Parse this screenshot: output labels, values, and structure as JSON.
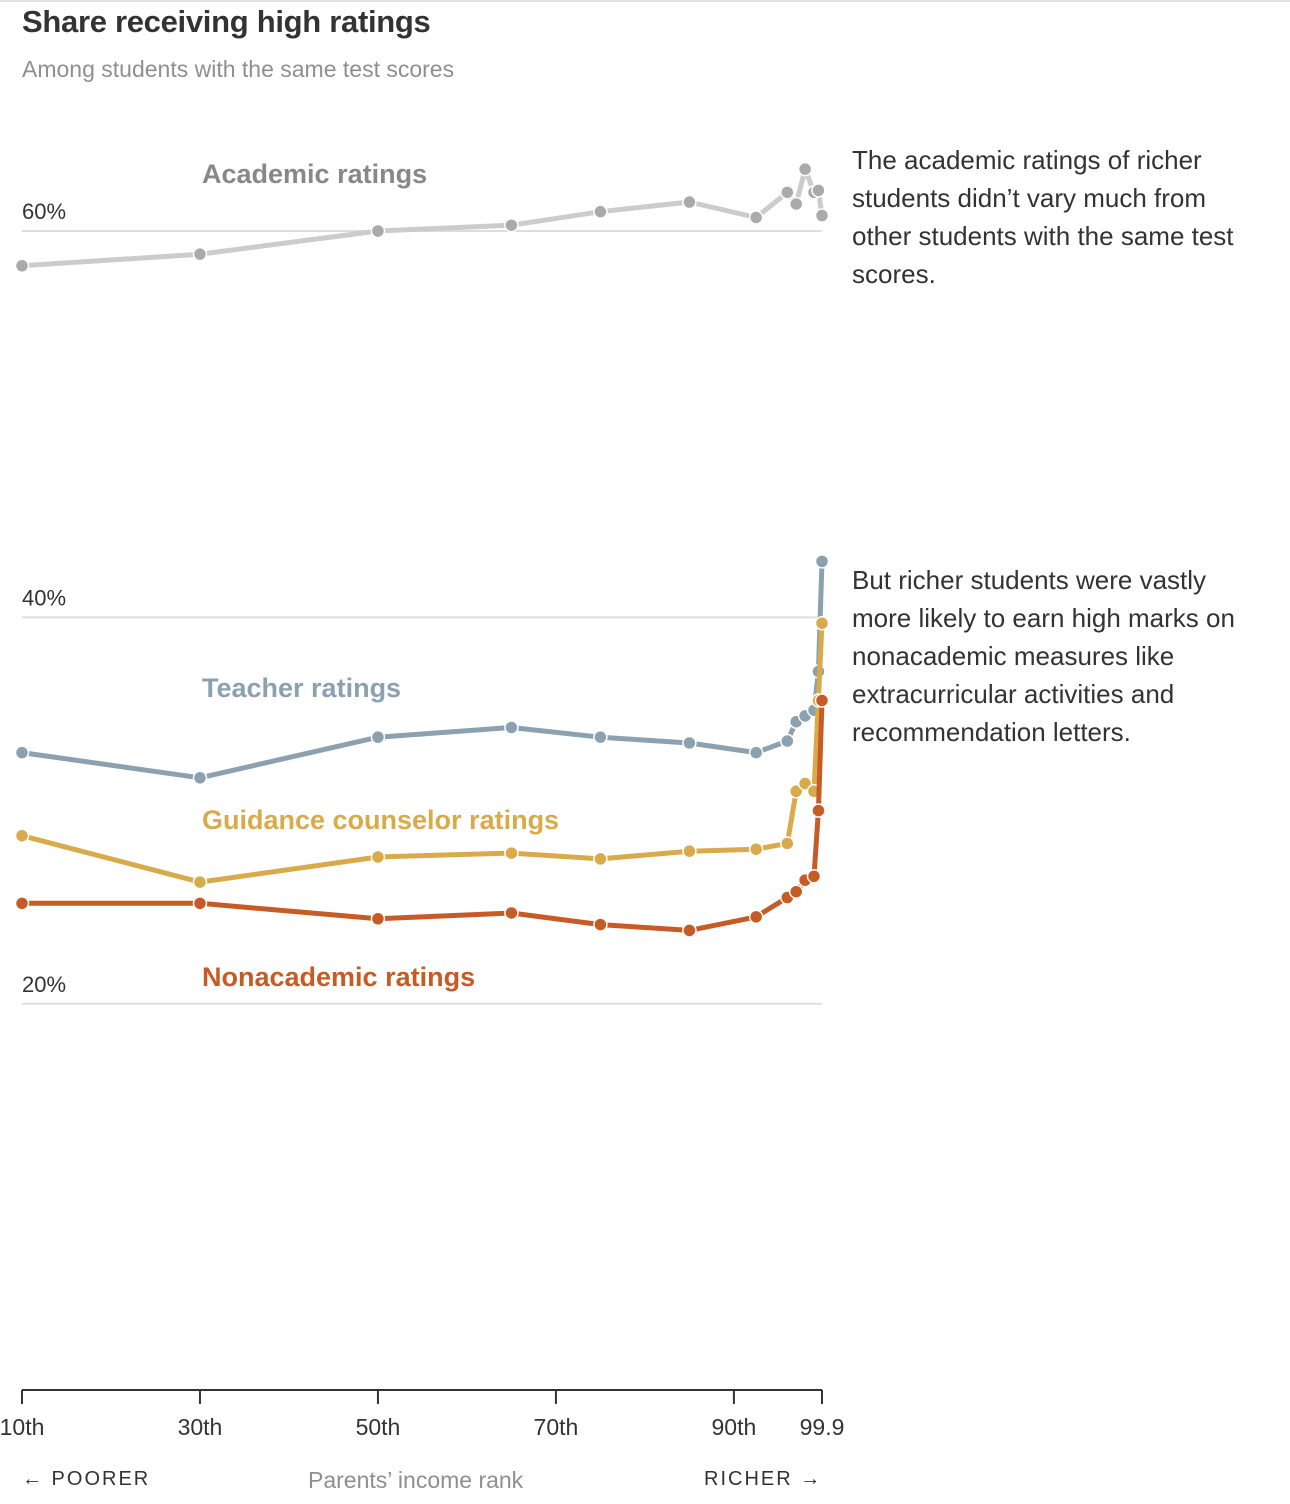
{
  "header": {
    "title": "Share receiving high ratings",
    "subtitle": "Among students with the same test scores"
  },
  "annotations": [
    "The academic ratings of richer students didn’t vary much from other students with the same test scores.",
    "But richer students were vastly more likely to earn high marks on nonacademic measures like extracurricular activities and recommendation letters."
  ],
  "x_axis": {
    "title": "Parents’ income rank",
    "left_label": "← POORER",
    "right_label": "RICHER →"
  },
  "chart_data": {
    "type": "line",
    "title": "Share receiving high ratings",
    "subtitle": "Among students with the same test scores",
    "xlabel": "Parents’ income rank",
    "ylabel": "",
    "xlim": [
      10,
      99.9
    ],
    "ylim": [
      -0.2,
      0.6
    ],
    "x_ticks": [
      {
        "value": 10,
        "label": "10th"
      },
      {
        "value": 30,
        "label": "30th"
      },
      {
        "value": 50,
        "label": "50th"
      },
      {
        "value": 70,
        "label": "70th"
      },
      {
        "value": 90,
        "label": "90th"
      },
      {
        "value": 99.9,
        "label": "99.9"
      }
    ],
    "y_ticks": [
      {
        "value": 0.6,
        "label": "60%"
      },
      {
        "value": 0.4,
        "label": "40%"
      },
      {
        "value": 0.2,
        "label": "20%"
      }
    ],
    "grid": true,
    "legend": "inline labels",
    "series": [
      {
        "name": "Academic ratings",
        "color": "#cccccc",
        "marker_color": "#aaaaaa",
        "label_color": "#888888",
        "points": [
          [
            10,
            0.582
          ],
          [
            30,
            0.588
          ],
          [
            50,
            0.6
          ],
          [
            65,
            0.603
          ],
          [
            75,
            0.61
          ],
          [
            85,
            0.615
          ],
          [
            92.5,
            0.607
          ],
          [
            96,
            0.62
          ],
          [
            97,
            0.614
          ],
          [
            98,
            0.632
          ],
          [
            99,
            0.62
          ],
          [
            99.5,
            0.621
          ],
          [
            99.9,
            0.608
          ]
        ]
      },
      {
        "name": "Teacher ratings",
        "color": "#8ba1b0",
        "marker_color": "#8ba1b0",
        "label_color": "#8ba1b0",
        "points": [
          [
            10,
            0.33
          ],
          [
            30,
            0.317
          ],
          [
            50,
            0.338
          ],
          [
            65,
            0.343
          ],
          [
            75,
            0.338
          ],
          [
            85,
            0.335
          ],
          [
            92.5,
            0.33
          ],
          [
            96,
            0.336
          ],
          [
            97,
            0.346
          ],
          [
            98,
            0.349
          ],
          [
            99,
            0.352
          ],
          [
            99.5,
            0.372
          ],
          [
            99.9,
            0.429
          ]
        ]
      },
      {
        "name": "Guidance counselor ratings",
        "color": "#d9aa4a",
        "marker_color": "#d9aa4a",
        "label_color": "#d9aa4a",
        "points": [
          [
            10,
            0.287
          ],
          [
            30,
            0.263
          ],
          [
            50,
            0.276
          ],
          [
            65,
            0.278
          ],
          [
            75,
            0.275
          ],
          [
            85,
            0.279
          ],
          [
            92.5,
            0.28
          ],
          [
            96,
            0.283
          ],
          [
            97,
            0.31
          ],
          [
            98,
            0.314
          ],
          [
            99,
            0.31
          ],
          [
            99.5,
            0.357
          ],
          [
            99.9,
            0.397
          ]
        ]
      },
      {
        "name": "Nonacademic ratings",
        "color": "#c75b26",
        "marker_color": "#c75b26",
        "label_color": "#c75b26",
        "points": [
          [
            10,
            0.252
          ],
          [
            30,
            0.252
          ],
          [
            50,
            0.244
          ],
          [
            65,
            0.247
          ],
          [
            75,
            0.241
          ],
          [
            85,
            0.238
          ],
          [
            92.5,
            0.245
          ],
          [
            96,
            0.255
          ],
          [
            97,
            0.258
          ],
          [
            98,
            0.264
          ],
          [
            99,
            0.266
          ],
          [
            99.5,
            0.3
          ],
          [
            99.9,
            0.357
          ]
        ]
      }
    ]
  }
}
